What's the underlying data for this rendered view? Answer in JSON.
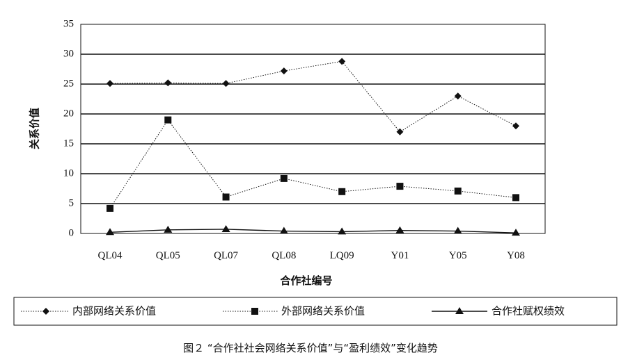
{
  "chart_data": {
    "type": "line",
    "ylabel": "关系价值",
    "xlabel": "合作社编号",
    "categories": [
      "QL04",
      "QL05",
      "QL07",
      "QL08",
      "LQ09",
      "Y01",
      "Y05",
      "Y08"
    ],
    "ylim": [
      0,
      35
    ],
    "yticks": [
      "0",
      "5",
      "10",
      "15",
      "20",
      "25",
      "30",
      "35"
    ],
    "grid": "horizontal",
    "legend_position": "bottom",
    "series": [
      {
        "name": "内部网络关系价值",
        "marker": "diamond",
        "line": "dotted",
        "values": [
          25.1,
          25.2,
          25.1,
          27.2,
          28.8,
          17.0,
          23.0,
          18.0
        ]
      },
      {
        "name": "外部网络关系价值",
        "marker": "square",
        "line": "dotted",
        "values": [
          4.2,
          19.0,
          6.1,
          9.2,
          7.0,
          7.9,
          7.1,
          6.0
        ]
      },
      {
        "name": "合作社赋权绩效",
        "marker": "triangle",
        "line": "solid",
        "values": [
          0.2,
          0.6,
          0.7,
          0.4,
          0.3,
          0.5,
          0.4,
          0.1
        ]
      }
    ]
  },
  "caption": "图２ “合作社社会网络关系价值”与“盈利绩效”变化趋势"
}
